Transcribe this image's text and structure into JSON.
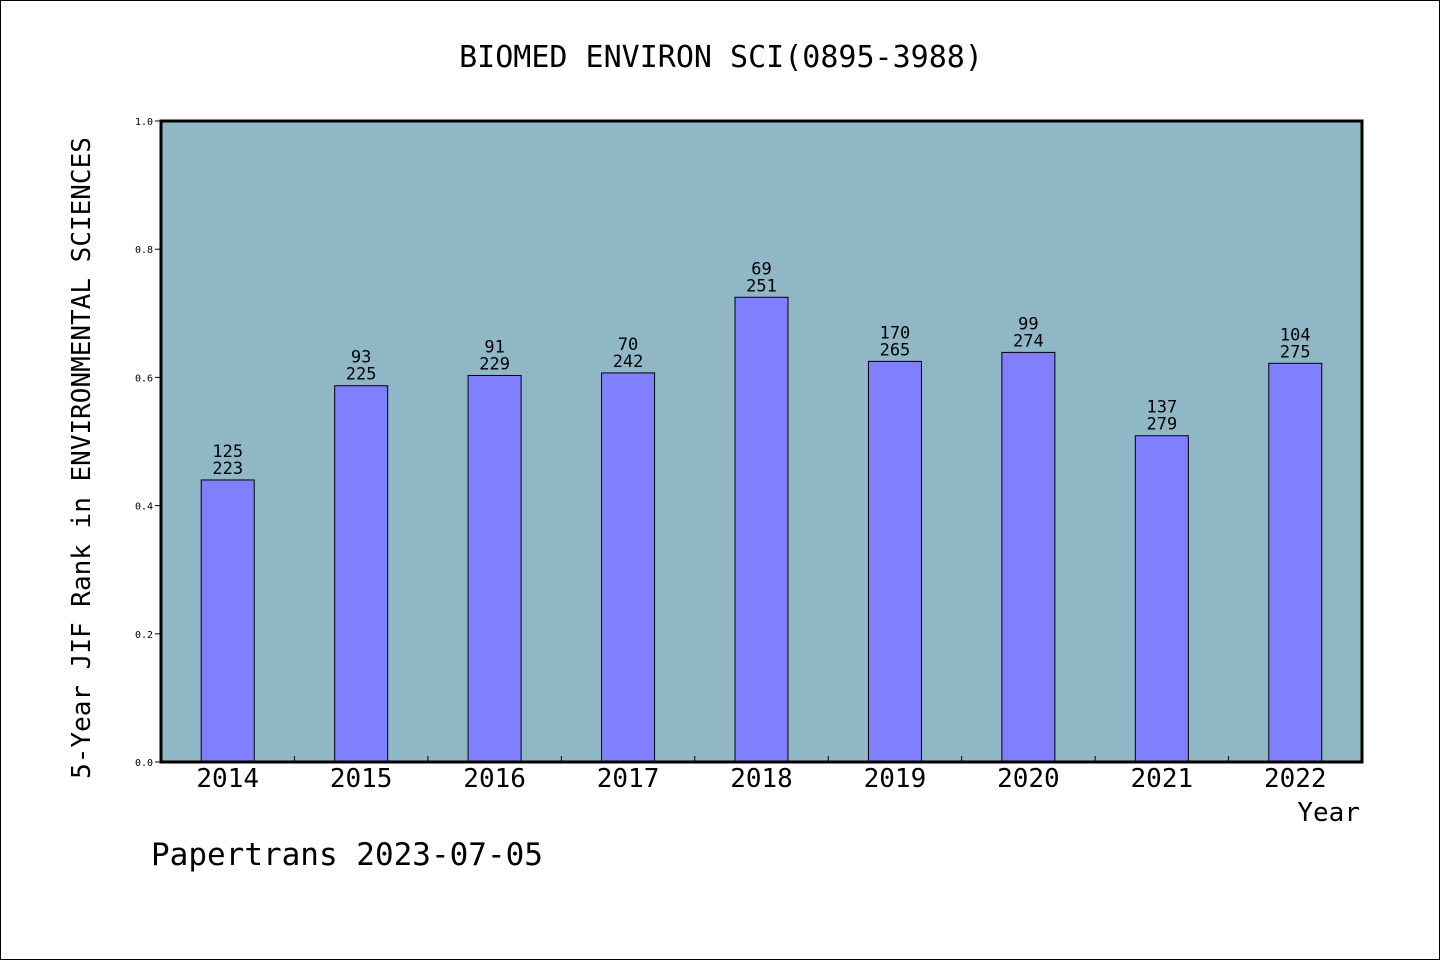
{
  "chart_data": {
    "type": "bar",
    "title": "BIOMED ENVIRON SCI(0895-3988)",
    "xlabel": "Year",
    "ylabel": "5-Year JIF Rank in ENVIRONMENTAL SCIENCES",
    "categories": [
      "2014",
      "2015",
      "2016",
      "2017",
      "2018",
      "2019",
      "2020",
      "2021",
      "2022"
    ],
    "values": [
      0.44,
      0.587,
      0.603,
      0.607,
      0.725,
      0.625,
      0.639,
      0.509,
      0.622
    ],
    "rank": [
      "125",
      "93",
      "91",
      "70",
      "69",
      "170",
      "99",
      "137",
      "104"
    ],
    "total": [
      "223",
      "225",
      "229",
      "242",
      "251",
      "265",
      "274",
      "279",
      "275"
    ],
    "ylim": [
      0,
      1
    ],
    "yticks": [
      "0.0",
      "0.2",
      "0.4",
      "0.6",
      "0.8",
      "1.0"
    ],
    "grid": false,
    "colors": {
      "plot_bg": "#8fb7c6",
      "bar": "#8080ff"
    }
  },
  "footer": "Papertrans 2023-07-05"
}
